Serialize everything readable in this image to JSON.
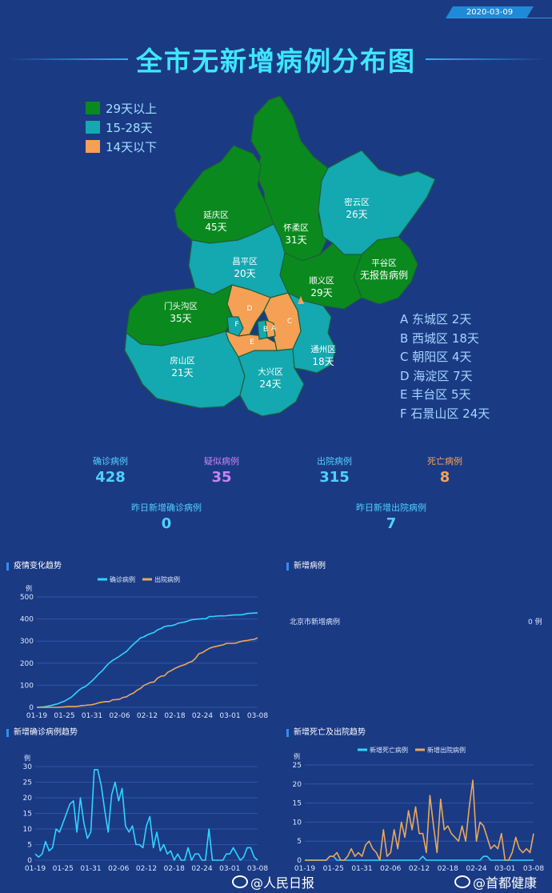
{
  "date": "2020-03-09",
  "title": "全市无新增病例分布图",
  "legend": [
    {
      "label": "29天以上",
      "color": "#0a8a1e"
    },
    {
      "label": "15-28天",
      "color": "#14a8b0"
    },
    {
      "label": "14天以下",
      "color": "#f5a054"
    }
  ],
  "map": {
    "districts": [
      {
        "id": "yanqing",
        "name": "延庆区",
        "days": "45天"
      },
      {
        "id": "huairou",
        "name": "怀柔区",
        "days": "31天"
      },
      {
        "id": "miyun",
        "name": "密云区",
        "days": "26天"
      },
      {
        "id": "changping",
        "name": "昌平区",
        "days": "20天"
      },
      {
        "id": "pinggu",
        "name": "平谷区",
        "days": "无报告病例"
      },
      {
        "id": "shunyi",
        "name": "顺义区",
        "days": "29天"
      },
      {
        "id": "mentougou",
        "name": "门头沟区",
        "days": "35天"
      },
      {
        "id": "fangshan",
        "name": "房山区",
        "days": "21天"
      },
      {
        "id": "daxing",
        "name": "大兴区",
        "days": "24天"
      },
      {
        "id": "tongzhou",
        "name": "通州区",
        "days": "18天"
      }
    ],
    "letters": [
      "A",
      "B",
      "C",
      "D",
      "E",
      "F"
    ],
    "key": [
      "A 东城区 2天",
      "B 西城区 18天",
      "C 朝阳区 4天",
      "D 海淀区 7天",
      "E 丰台区 5天",
      "F 石景山区 24天"
    ]
  },
  "stats": {
    "confirmed": {
      "label": "确诊病例",
      "value": "428",
      "color": "#4fd0ff"
    },
    "suspected": {
      "label": "疑似病例",
      "value": "35",
      "color": "#c784f5"
    },
    "discharged": {
      "label": "出院病例",
      "value": "315",
      "color": "#4fd0ff"
    },
    "deaths": {
      "label": "死亡病例",
      "value": "8",
      "color": "#f2a35a"
    },
    "new_confirmed_yesterday": {
      "label": "昨日新增确诊病例",
      "value": "0"
    },
    "new_discharged_yesterday": {
      "label": "昨日新增出院病例",
      "value": "7"
    }
  },
  "panels": {
    "new_cases": {
      "title": "新增病例",
      "row_label": "北京市新增病例",
      "row_value": "0 例"
    }
  },
  "chart_data": [
    {
      "type": "line",
      "title": "疫情变化趋势",
      "ylabel": "例",
      "ylim": [
        0,
        500
      ],
      "yticks": [
        0,
        100,
        200,
        300,
        400,
        500
      ],
      "xtick_labels": [
        "01-19",
        "01-25",
        "01-31",
        "02-06",
        "02-12",
        "02-18",
        "02-24",
        "03-01",
        "03-08"
      ],
      "grid": true,
      "legend_position": "top",
      "series": [
        {
          "name": "确诊病例",
          "color": "#2fd4ff",
          "values": [
            0,
            1,
            2,
            5,
            8,
            12,
            16,
            22,
            28,
            37,
            46,
            60,
            75,
            87,
            94,
            106,
            120,
            135,
            152,
            166,
            185,
            201,
            213,
            222,
            232,
            243,
            253,
            270,
            286,
            299,
            314,
            319,
            328,
            334,
            339,
            351,
            357,
            366,
            369,
            370,
            374,
            381,
            384,
            387,
            392,
            397,
            399,
            400,
            401,
            401,
            411,
            411,
            413,
            414,
            414,
            415,
            417,
            418,
            419,
            419,
            421,
            425,
            426,
            427,
            428
          ]
        },
        {
          "name": "出院病例",
          "color": "#e8a85c",
          "values": [
            0,
            0,
            0,
            0,
            0,
            0,
            0,
            1,
            2,
            4,
            4,
            4,
            5,
            8,
            9,
            11,
            12,
            16,
            21,
            24,
            26,
            26,
            34,
            35,
            37,
            45,
            48,
            58,
            64,
            77,
            85,
            99,
            106,
            113,
            115,
            132,
            141,
            143,
            159,
            167,
            176,
            183,
            189,
            194,
            203,
            208,
            222,
            243,
            248,
            258,
            267,
            273,
            276,
            280,
            283,
            290,
            290,
            290,
            292,
            298,
            301,
            303,
            306,
            308,
            315
          ]
        }
      ]
    },
    {
      "type": "line",
      "title": "新增确诊病例趋势",
      "ylabel": "例",
      "ylim": [
        0,
        30
      ],
      "yticks": [
        0,
        5,
        10,
        15,
        20,
        25,
        30
      ],
      "xtick_labels": [
        "01-19",
        "01-25",
        "01-31",
        "02-06",
        "02-12",
        "02-18",
        "02-24",
        "03-01",
        "03-08"
      ],
      "grid": true,
      "series": [
        {
          "name": "新增确诊病例",
          "color": "#2fd4ff",
          "values": [
            2,
            1,
            2,
            6,
            3,
            4,
            10,
            9,
            12,
            15,
            18,
            19,
            9,
            20,
            12,
            7,
            9,
            29,
            29,
            24,
            16,
            9,
            21,
            25,
            19,
            23,
            11,
            9,
            11,
            5,
            5,
            4,
            11,
            14,
            4,
            9,
            3,
            5,
            2,
            3,
            0,
            2,
            0,
            0,
            4,
            0,
            2,
            2,
            0,
            0,
            10,
            0,
            0,
            0,
            0,
            2,
            2,
            4,
            2,
            0,
            1,
            4,
            4,
            1,
            0
          ]
        }
      ]
    },
    {
      "type": "line",
      "title": "新增死亡及出院趋势",
      "ylabel": "例",
      "ylim": [
        0,
        25
      ],
      "yticks": [
        0,
        5,
        10,
        15,
        20,
        25
      ],
      "xtick_labels": [
        "01-19",
        "01-25",
        "01-31",
        "02-06",
        "02-12",
        "02-18",
        "02-24",
        "03-01",
        "03-08"
      ],
      "grid": true,
      "legend_position": "top",
      "series": [
        {
          "name": "新增死亡病例",
          "color": "#2fd4ff",
          "values": [
            0,
            0,
            0,
            0,
            0,
            0,
            0,
            1,
            1,
            0,
            0,
            0,
            0,
            0,
            0,
            0,
            0,
            0,
            0,
            0,
            0,
            0,
            0,
            0,
            0,
            0,
            0,
            0,
            0,
            0,
            0,
            0,
            0,
            1,
            0,
            0,
            0,
            0,
            0,
            0,
            0,
            0,
            0,
            0,
            0,
            0,
            0,
            0,
            0,
            0,
            1,
            1,
            0,
            0,
            0,
            0,
            0,
            0,
            0,
            0,
            0,
            0,
            0,
            0,
            0
          ]
        },
        {
          "name": "新增出院病例",
          "color": "#e8a85c",
          "values": [
            0,
            0,
            0,
            0,
            0,
            0,
            0,
            1,
            1,
            2,
            0,
            0,
            1,
            3,
            1,
            2,
            1,
            4,
            5,
            3,
            2,
            0,
            8,
            1,
            2,
            8,
            3,
            10,
            6,
            13,
            8,
            14,
            7,
            7,
            2,
            17,
            9,
            2,
            16,
            8,
            9,
            7,
            6,
            5,
            9,
            5,
            14,
            21,
            5,
            10,
            9,
            6,
            3,
            4,
            3,
            7,
            0,
            0,
            2,
            6,
            3,
            2,
            3,
            2,
            7
          ]
        }
      ]
    }
  ],
  "watermarks": [
    "@人民日报",
    "@首都健康"
  ]
}
